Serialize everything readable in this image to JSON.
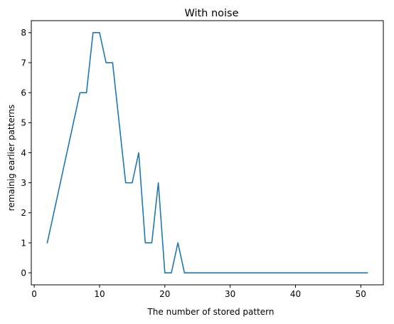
{
  "chart_data": {
    "type": "line",
    "title": "With noise",
    "xlabel": "The number of stored pattern",
    "ylabel": "remainig earlier patterns",
    "xlim": [
      -0.45,
      53.45
    ],
    "ylim": [
      -0.4,
      8.4
    ],
    "xticks": [
      0,
      10,
      20,
      30,
      40,
      50
    ],
    "yticks": [
      0,
      1,
      2,
      3,
      4,
      5,
      6,
      7,
      8
    ],
    "grid": false,
    "series": [
      {
        "color": "#1f77b4",
        "x": [
          2,
          7,
          8,
          9,
          10,
          11,
          12,
          13,
          14,
          15,
          16,
          17,
          18,
          19,
          20,
          21,
          22,
          23,
          24,
          25,
          26,
          27,
          28,
          29,
          30,
          31,
          32,
          33,
          34,
          35,
          36,
          37,
          38,
          39,
          40,
          41,
          42,
          43,
          44,
          45,
          46,
          47,
          48,
          49,
          50,
          51
        ],
        "y": [
          1,
          6,
          6,
          8,
          8,
          7,
          7,
          5,
          3,
          3,
          4,
          1,
          1,
          3,
          0,
          0,
          1,
          0,
          0,
          0,
          0,
          0,
          0,
          0,
          0,
          0,
          0,
          0,
          0,
          0,
          0,
          0,
          0,
          0,
          0,
          0,
          0,
          0,
          0,
          0,
          0,
          0,
          0,
          0,
          0,
          0
        ]
      }
    ]
  }
}
